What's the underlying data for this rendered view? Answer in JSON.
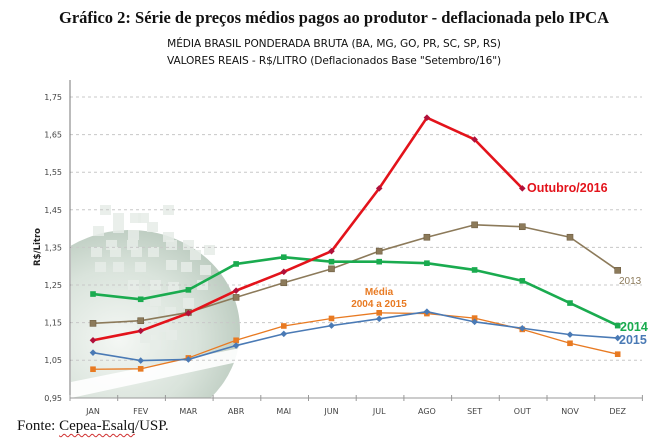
{
  "header": {
    "title": "Gráfico 2: Série de preços médios pagos ao produtor - deflacionada pelo IPCA",
    "subtitle1": "MÉDIA BRASIL PONDERADA BRUTA (BA, MG, GO, PR, SC, SP, RS)",
    "subtitle2": "VALORES REAIS - R$/LITRO (Deflacionados Base \"Setembro/16\")"
  },
  "footer": {
    "prefix": "Fonte: ",
    "source": "Cepea-Esalq",
    "suffix": "/USP."
  },
  "chart_data": {
    "type": "line",
    "title": "Gráfico 2: Série de preços médios pagos ao produtor - deflacionada pelo IPCA",
    "xlabel": "",
    "ylabel": "R$/Litro",
    "ylim": [
      0.95,
      1.75
    ],
    "yticks": [
      0.95,
      1.05,
      1.15,
      1.25,
      1.35,
      1.45,
      1.55,
      1.65,
      1.75
    ],
    "ytick_labels": [
      "0,95",
      "1,05",
      "1,15",
      "1,25",
      "1,35",
      "1,45",
      "1,55",
      "1,65",
      "1,75"
    ],
    "grid": true,
    "categories": [
      "JAN",
      "FEV",
      "MAR",
      "ABR",
      "MAI",
      "JUN",
      "JUL",
      "AGO",
      "SET",
      "OUT",
      "NOV",
      "DEZ"
    ],
    "series": [
      {
        "name": "2013",
        "label": "2013",
        "color": "#8c7a5a",
        "marker": "square",
        "values": [
          1.148,
          1.155,
          1.177,
          1.217,
          1.256,
          1.293,
          1.34,
          1.377,
          1.41,
          1.405,
          1.377,
          1.289
        ]
      },
      {
        "name": "2014",
        "label": "2014",
        "color": "#1aab4f",
        "marker": "square",
        "values": [
          1.226,
          1.212,
          1.237,
          1.306,
          1.324,
          1.312,
          1.312,
          1.308,
          1.29,
          1.261,
          1.202,
          1.142
        ]
      },
      {
        "name": "2015",
        "label": "2015",
        "color": "#4a7ab5",
        "marker": "diamond",
        "values": [
          1.07,
          1.049,
          1.052,
          1.089,
          1.12,
          1.142,
          1.16,
          1.179,
          1.152,
          1.135,
          1.118,
          1.109
        ]
      },
      {
        "name": "Média 2004 a 2015",
        "label": "Média\n2004 a 2015",
        "color": "#e87a22",
        "marker": "square",
        "values": [
          1.026,
          1.027,
          1.056,
          1.103,
          1.141,
          1.161,
          1.176,
          1.174,
          1.162,
          1.132,
          1.095,
          1.066
        ]
      },
      {
        "name": "2016",
        "label": "Outubro/2016",
        "color": "#e3131b",
        "marker": "diamond",
        "values": [
          1.103,
          1.128,
          1.175,
          1.235,
          1.285,
          1.34,
          1.507,
          1.695,
          1.637,
          1.507,
          null,
          null
        ]
      }
    ]
  }
}
